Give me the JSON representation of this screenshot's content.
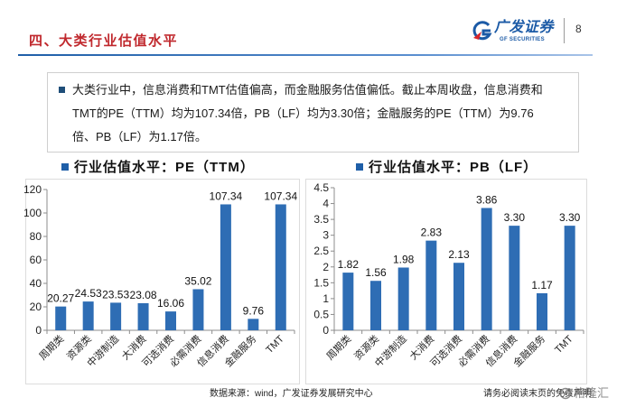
{
  "header": {
    "title": "四、大类行业估值水平",
    "logo_text": "广发证券",
    "logo_subtext": "GF SECURITIES",
    "page_number": "8"
  },
  "summary": {
    "lines": [
      "大类行业中，信息消费和TMT估值偏高，而金融服务估值偏低。截止本周收盘，信息消费和",
      "TMT的PE（TTM）均为107.34倍，PB（LF）均为3.30倍；金融服务的PE（TTM）为9.76",
      "倍、PB（LF）为1.17倍。"
    ]
  },
  "colors": {
    "title": "#C0282D",
    "accent": "#1F5FA8",
    "bar": "#2E6DB4",
    "logo": "#1B5AA6"
  },
  "chart_data": [
    {
      "type": "bar",
      "title": "行业估值水平：PE（TTM）",
      "categories": [
        "周期类",
        "资源类",
        "中游制造",
        "大消费",
        "可选消费",
        "必需消费",
        "信息消费",
        "金融服务",
        "TMT"
      ],
      "values": [
        20.27,
        24.53,
        23.53,
        23.08,
        16.06,
        35.02,
        107.34,
        9.76,
        107.34
      ],
      "ylim": [
        0,
        120
      ],
      "yticks": [
        0,
        20,
        40,
        60,
        80,
        100,
        120
      ],
      "grid": false
    },
    {
      "type": "bar",
      "title": "行业估值水平：PB（LF）",
      "categories": [
        "周期类",
        "资源类",
        "中游制造",
        "大消费",
        "可选消费",
        "必需消费",
        "信息消费",
        "金融服务",
        "TMT"
      ],
      "values": [
        1.82,
        1.56,
        1.98,
        2.83,
        2.13,
        3.86,
        3.3,
        1.17,
        3.3
      ],
      "ylim": [
        0,
        4.5
      ],
      "yticks": [
        0,
        0.5,
        1,
        1.5,
        2,
        2.5,
        3,
        3.5,
        4,
        4.5
      ],
      "grid": false
    }
  ],
  "footer": {
    "source": "数据来源：wind，广发证券发展研究中心",
    "disclaimer": "请务必阅读末页的免责声明",
    "watermark": "格隆汇"
  }
}
